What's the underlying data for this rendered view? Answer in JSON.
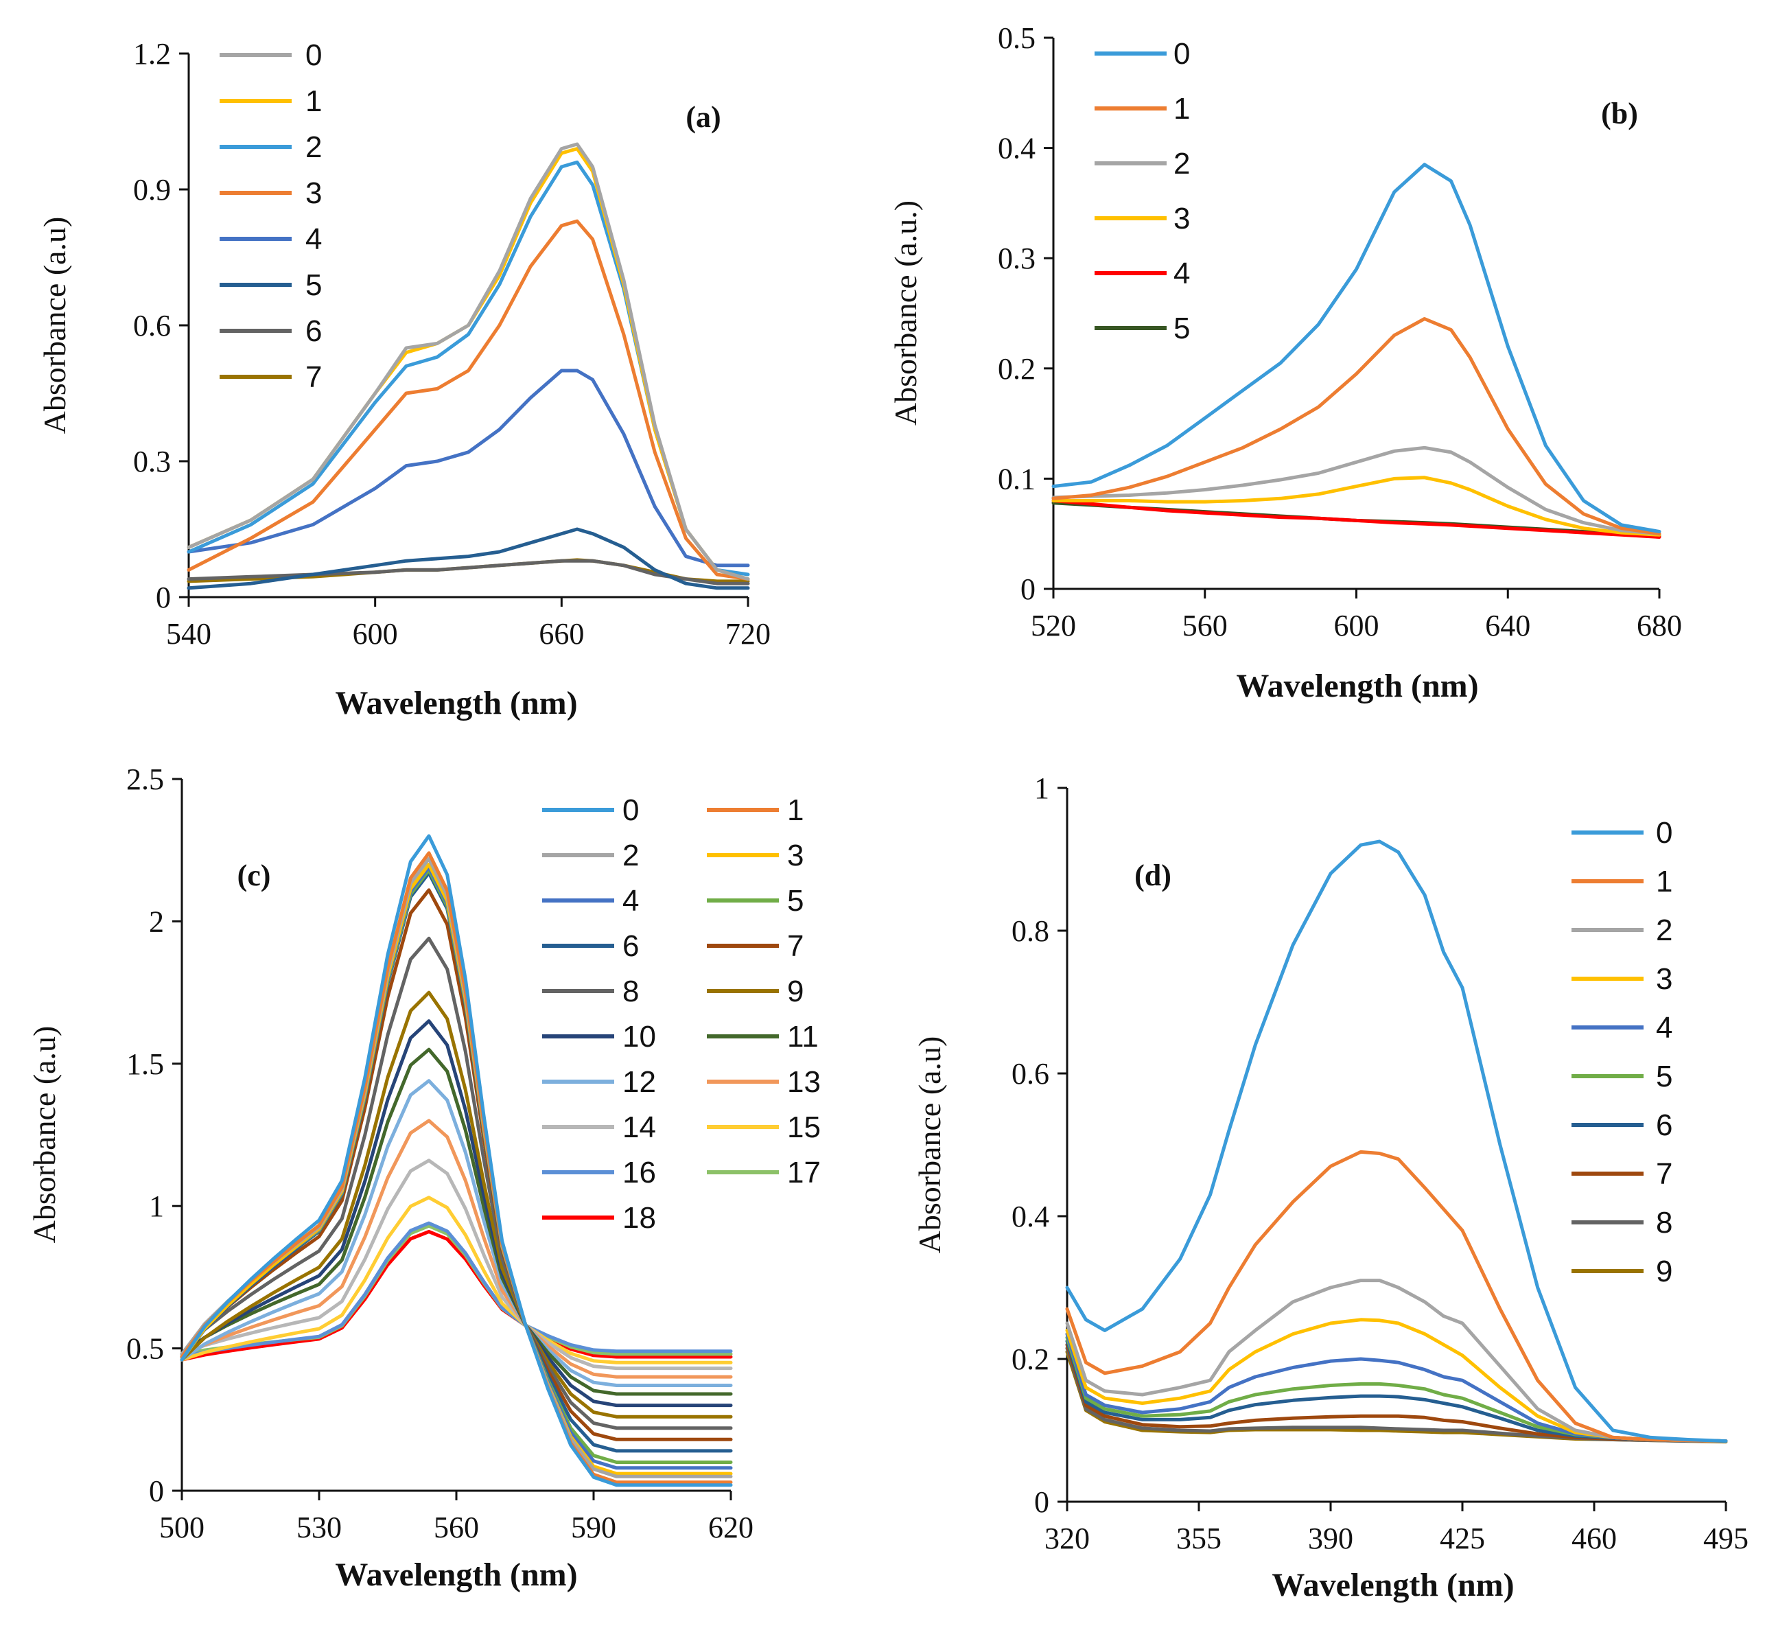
{
  "chart_data": [
    {
      "type": "line",
      "panel": "(a)",
      "xlabel": "Wavelength  (nm)",
      "ylabel": "Absorbance (a.u)",
      "xlim": [
        540,
        720
      ],
      "ylim": [
        0,
        1.2
      ],
      "xticks": [
        540,
        600,
        660,
        720
      ],
      "xtick_labels": [
        "540",
        "600",
        "660",
        "720"
      ],
      "yticks": [
        0,
        0.3,
        0.6,
        0.9,
        1.2
      ],
      "ytick_labels": [
        "0",
        "0.3",
        "0.6",
        "0.9",
        "1.2"
      ],
      "legend_position": "top-left",
      "x": [
        540,
        560,
        580,
        600,
        610,
        620,
        630,
        640,
        650,
        660,
        665,
        670,
        680,
        690,
        700,
        710,
        720
      ],
      "series": [
        {
          "name": "0",
          "color": "#a5a5a5",
          "values": [
            0.11,
            0.17,
            0.26,
            0.45,
            0.55,
            0.56,
            0.6,
            0.72,
            0.88,
            0.99,
            1.0,
            0.95,
            0.7,
            0.38,
            0.15,
            0.06,
            0.04
          ]
        },
        {
          "name": "1",
          "color": "#ffc000",
          "values": [
            0.11,
            0.17,
            0.26,
            0.45,
            0.54,
            0.56,
            0.6,
            0.71,
            0.87,
            0.98,
            0.99,
            0.94,
            0.69,
            0.37,
            0.15,
            0.06,
            0.04
          ]
        },
        {
          "name": "2",
          "color": "#3a9bd9",
          "values": [
            0.1,
            0.16,
            0.25,
            0.43,
            0.51,
            0.53,
            0.58,
            0.69,
            0.84,
            0.95,
            0.96,
            0.91,
            0.68,
            0.37,
            0.15,
            0.06,
            0.05
          ]
        },
        {
          "name": "3",
          "color": "#ed7d31",
          "values": [
            0.06,
            0.13,
            0.21,
            0.37,
            0.45,
            0.46,
            0.5,
            0.6,
            0.73,
            0.82,
            0.83,
            0.79,
            0.58,
            0.32,
            0.13,
            0.05,
            0.04
          ]
        },
        {
          "name": "4",
          "color": "#4472c4",
          "values": [
            0.1,
            0.12,
            0.16,
            0.24,
            0.29,
            0.3,
            0.32,
            0.37,
            0.44,
            0.5,
            0.5,
            0.48,
            0.36,
            0.2,
            0.09,
            0.07,
            0.07
          ]
        },
        {
          "name": "5",
          "color": "#255e91",
          "values": [
            0.02,
            0.03,
            0.05,
            0.07,
            0.08,
            0.085,
            0.09,
            0.1,
            0.12,
            0.14,
            0.15,
            0.14,
            0.11,
            0.06,
            0.03,
            0.02,
            0.02
          ]
        },
        {
          "name": "6",
          "color": "#636363",
          "values": [
            0.04,
            0.045,
            0.05,
            0.055,
            0.06,
            0.06,
            0.065,
            0.07,
            0.075,
            0.08,
            0.08,
            0.08,
            0.07,
            0.05,
            0.04,
            0.03,
            0.03
          ]
        },
        {
          "name": "7",
          "color": "#997300",
          "values": [
            0.035,
            0.04,
            0.045,
            0.055,
            0.06,
            0.06,
            0.065,
            0.07,
            0.075,
            0.08,
            0.082,
            0.08,
            0.07,
            0.055,
            0.04,
            0.035,
            0.035
          ]
        }
      ]
    },
    {
      "type": "line",
      "panel": "(b)",
      "xlabel": "Wavelength  (nm)",
      "ylabel": "Absorbance (a.u.)",
      "xlim": [
        520,
        680
      ],
      "ylim": [
        0,
        0.5
      ],
      "xticks": [
        520,
        560,
        600,
        640,
        680
      ],
      "xtick_labels": [
        "520",
        "560",
        "600",
        "640",
        "680"
      ],
      "yticks": [
        0,
        0.1,
        0.2,
        0.3,
        0.4,
        0.5
      ],
      "ytick_labels": [
        "0",
        "0.1",
        "0.2",
        "0.3",
        "0.4",
        "0.5"
      ],
      "legend_position": "top-left",
      "x": [
        520,
        530,
        540,
        550,
        560,
        570,
        580,
        590,
        600,
        610,
        618,
        625,
        630,
        640,
        650,
        660,
        670,
        680
      ],
      "series": [
        {
          "name": "0",
          "color": "#3a9bd9",
          "values": [
            0.093,
            0.097,
            0.112,
            0.13,
            0.155,
            0.18,
            0.205,
            0.24,
            0.29,
            0.36,
            0.385,
            0.37,
            0.33,
            0.22,
            0.13,
            0.08,
            0.058,
            0.052
          ]
        },
        {
          "name": "1",
          "color": "#ed7d31",
          "values": [
            0.082,
            0.085,
            0.092,
            0.102,
            0.115,
            0.128,
            0.145,
            0.165,
            0.195,
            0.23,
            0.245,
            0.235,
            0.21,
            0.145,
            0.095,
            0.068,
            0.055,
            0.05
          ]
        },
        {
          "name": "2",
          "color": "#a5a5a5",
          "values": [
            0.083,
            0.084,
            0.085,
            0.087,
            0.09,
            0.094,
            0.099,
            0.105,
            0.115,
            0.125,
            0.128,
            0.124,
            0.115,
            0.092,
            0.072,
            0.06,
            0.053,
            0.05
          ]
        },
        {
          "name": "3",
          "color": "#ffc000",
          "values": [
            0.08,
            0.08,
            0.08,
            0.079,
            0.079,
            0.08,
            0.082,
            0.086,
            0.093,
            0.1,
            0.101,
            0.096,
            0.09,
            0.075,
            0.063,
            0.055,
            0.051,
            0.049
          ]
        },
        {
          "name": "4",
          "color": "#ff0000",
          "values": [
            0.08,
            0.077,
            0.074,
            0.071,
            0.069,
            0.067,
            0.065,
            0.064,
            0.062,
            0.06,
            0.059,
            0.058,
            0.057,
            0.055,
            0.053,
            0.051,
            0.049,
            0.047
          ]
        },
        {
          "name": "5",
          "color": "#375623",
          "values": [
            0.078,
            0.076,
            0.074,
            0.072,
            0.07,
            0.068,
            0.066,
            0.064,
            0.062,
            0.061,
            0.06,
            0.059,
            0.058,
            0.056,
            0.054,
            0.052,
            0.05,
            0.048
          ]
        }
      ]
    },
    {
      "type": "line",
      "panel": "(c)",
      "xlabel": "Wavelength  (nm)",
      "ylabel": "Absorbance  (a.u)",
      "xlim": [
        500,
        620
      ],
      "ylim": [
        0,
        2.5
      ],
      "xticks": [
        500,
        530,
        560,
        590,
        620
      ],
      "xtick_labels": [
        "500",
        "530",
        "560",
        "590",
        "620"
      ],
      "yticks": [
        0,
        0.5,
        1,
        1.5,
        2,
        2.5
      ],
      "ytick_labels": [
        "0",
        "0.5",
        "1",
        "1.5",
        "2",
        "2.5"
      ],
      "legend_position": "top-right",
      "x": [
        500,
        505,
        510,
        515,
        520,
        525,
        530,
        535,
        540,
        545,
        550,
        554,
        558,
        562,
        566,
        570,
        575,
        580,
        585,
        590,
        595,
        600,
        610,
        620
      ],
      "series": [
        {
          "name": "0",
          "color": "#3a9bd9",
          "peak": 2.3,
          "baseline": 0.02
        },
        {
          "name": "1",
          "color": "#ed7d31",
          "peak": 2.24,
          "baseline": 0.03
        },
        {
          "name": "2",
          "color": "#a5a5a5",
          "peak": 2.22,
          "baseline": 0.05
        },
        {
          "name": "3",
          "color": "#ffc000",
          "peak": 2.2,
          "baseline": 0.06
        },
        {
          "name": "4",
          "color": "#4472c4",
          "peak": 2.19,
          "baseline": 0.08
        },
        {
          "name": "5",
          "color": "#70ad47",
          "peak": 2.18,
          "baseline": 0.1
        },
        {
          "name": "6",
          "color": "#255e91",
          "peak": 2.17,
          "baseline": 0.14
        },
        {
          "name": "7",
          "color": "#9e480e",
          "peak": 2.11,
          "baseline": 0.18
        },
        {
          "name": "8",
          "color": "#636363",
          "peak": 1.94,
          "baseline": 0.22
        },
        {
          "name": "9",
          "color": "#997300",
          "peak": 1.75,
          "baseline": 0.26
        },
        {
          "name": "10",
          "color": "#264478",
          "peak": 1.65,
          "baseline": 0.3
        },
        {
          "name": "11",
          "color": "#43682b",
          "peak": 1.55,
          "baseline": 0.34
        },
        {
          "name": "12",
          "color": "#7cafdd",
          "peak": 1.44,
          "baseline": 0.37
        },
        {
          "name": "13",
          "color": "#f1975a",
          "peak": 1.3,
          "baseline": 0.4
        },
        {
          "name": "14",
          "color": "#b7b7b7",
          "peak": 1.16,
          "baseline": 0.43
        },
        {
          "name": "15",
          "color": "#ffcd33",
          "peak": 1.03,
          "baseline": 0.45
        },
        {
          "name": "16",
          "color": "#5b8fd6",
          "peak": 0.94,
          "baseline": 0.49
        },
        {
          "name": "17",
          "color": "#8cc168",
          "peak": 0.93,
          "baseline": 0.48
        },
        {
          "name": "18",
          "color": "#ff0000",
          "peak": 0.91,
          "baseline": 0.47
        }
      ]
    },
    {
      "type": "line",
      "panel": "(d)",
      "xlabel": "Wavelength  (nm)",
      "ylabel": "Absorbance  (a.u)",
      "xlim": [
        320,
        495
      ],
      "ylim": [
        0,
        1
      ],
      "xticks": [
        320,
        355,
        390,
        425,
        460,
        495
      ],
      "xtick_labels": [
        "320",
        "355",
        "390",
        "425",
        "460",
        "495"
      ],
      "yticks": [
        0,
        0.2,
        0.4,
        0.6,
        0.8,
        1
      ],
      "ytick_labels": [
        "0",
        "0.2",
        "0.4",
        "0.6",
        "0.8",
        "1"
      ],
      "legend_position": "top-right",
      "x": [
        320,
        325,
        330,
        340,
        350,
        358,
        363,
        370,
        380,
        390,
        398,
        403,
        408,
        415,
        420,
        425,
        435,
        445,
        455,
        465,
        475,
        485,
        495
      ],
      "series": [
        {
          "name": "0",
          "color": "#3a9bd9",
          "values": [
            0.3,
            0.255,
            0.24,
            0.27,
            0.34,
            0.43,
            0.52,
            0.64,
            0.78,
            0.88,
            0.92,
            0.925,
            0.91,
            0.85,
            0.77,
            0.72,
            0.5,
            0.3,
            0.16,
            0.1,
            0.09,
            0.087,
            0.085
          ]
        },
        {
          "name": "1",
          "color": "#ed7d31",
          "values": [
            0.27,
            0.195,
            0.18,
            0.19,
            0.21,
            0.25,
            0.3,
            0.36,
            0.42,
            0.47,
            0.49,
            0.488,
            0.48,
            0.44,
            0.41,
            0.38,
            0.27,
            0.17,
            0.11,
            0.09,
            0.087,
            0.086,
            0.085
          ]
        },
        {
          "name": "2",
          "color": "#a5a5a5",
          "values": [
            0.25,
            0.17,
            0.155,
            0.15,
            0.16,
            0.17,
            0.21,
            0.24,
            0.28,
            0.3,
            0.31,
            0.31,
            0.3,
            0.28,
            0.26,
            0.25,
            0.19,
            0.13,
            0.1,
            0.09,
            0.087,
            0.086,
            0.085
          ]
        },
        {
          "name": "3",
          "color": "#ffc000",
          "values": [
            0.24,
            0.16,
            0.145,
            0.138,
            0.145,
            0.155,
            0.185,
            0.21,
            0.235,
            0.25,
            0.255,
            0.254,
            0.25,
            0.235,
            0.22,
            0.205,
            0.16,
            0.12,
            0.097,
            0.09,
            0.087,
            0.086,
            0.085
          ]
        },
        {
          "name": "4",
          "color": "#4472c4",
          "values": [
            0.235,
            0.15,
            0.135,
            0.125,
            0.13,
            0.14,
            0.16,
            0.175,
            0.188,
            0.197,
            0.2,
            0.198,
            0.195,
            0.185,
            0.175,
            0.17,
            0.14,
            0.11,
            0.095,
            0.09,
            0.087,
            0.086,
            0.085
          ]
        },
        {
          "name": "5",
          "color": "#70ad47",
          "values": [
            0.23,
            0.145,
            0.13,
            0.12,
            0.122,
            0.127,
            0.14,
            0.15,
            0.158,
            0.163,
            0.165,
            0.165,
            0.163,
            0.158,
            0.15,
            0.145,
            0.125,
            0.105,
            0.094,
            0.09,
            0.087,
            0.086,
            0.085
          ]
        },
        {
          "name": "6",
          "color": "#255e91",
          "values": [
            0.225,
            0.14,
            0.125,
            0.115,
            0.115,
            0.118,
            0.128,
            0.136,
            0.142,
            0.146,
            0.148,
            0.148,
            0.147,
            0.143,
            0.138,
            0.133,
            0.117,
            0.1,
            0.092,
            0.089,
            0.087,
            0.086,
            0.085
          ]
        },
        {
          "name": "7",
          "color": "#9e480e",
          "values": [
            0.22,
            0.135,
            0.12,
            0.108,
            0.105,
            0.106,
            0.11,
            0.114,
            0.117,
            0.119,
            0.12,
            0.12,
            0.12,
            0.118,
            0.114,
            0.112,
            0.103,
            0.095,
            0.09,
            0.088,
            0.087,
            0.086,
            0.085
          ]
        },
        {
          "name": "8",
          "color": "#636363",
          "values": [
            0.215,
            0.13,
            0.115,
            0.103,
            0.1,
            0.099,
            0.102,
            0.103,
            0.104,
            0.104,
            0.104,
            0.103,
            0.102,
            0.101,
            0.1,
            0.1,
            0.096,
            0.092,
            0.089,
            0.087,
            0.086,
            0.085,
            0.085
          ]
        },
        {
          "name": "9",
          "color": "#997300",
          "values": [
            0.21,
            0.128,
            0.112,
            0.1,
            0.098,
            0.097,
            0.1,
            0.101,
            0.101,
            0.101,
            0.1,
            0.1,
            0.099,
            0.098,
            0.097,
            0.097,
            0.094,
            0.091,
            0.088,
            0.087,
            0.086,
            0.085,
            0.084
          ]
        }
      ]
    }
  ],
  "panel_labels": [
    "(a)",
    "(b)",
    "(c)",
    "(d)"
  ]
}
